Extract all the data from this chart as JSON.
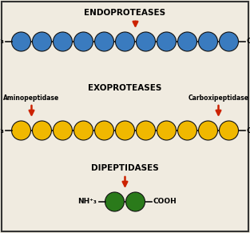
{
  "bg_color": "#f0ebe0",
  "border_color": "#333333",
  "title1": "ENDOPROTEASES",
  "title2": "EXOPROTEASES",
  "title3": "DIPEPTIDASES",
  "label_nh3": "NH⁺₃",
  "label_cooh": "COOH",
  "label_amino": "Aminopeptidase",
  "label_carboxi": "Carboxipeptidase",
  "blue_color": "#3a7bbf",
  "yellow_color": "#f0b800",
  "green_color": "#2a7a1a",
  "line_color": "#111111",
  "arrow_color": "#cc2200",
  "circle_edge": "#111111",
  "n_blue": 11,
  "n_yellow": 11,
  "n_green": 2,
  "figsize": [
    3.13,
    2.91
  ],
  "dpi": 100
}
